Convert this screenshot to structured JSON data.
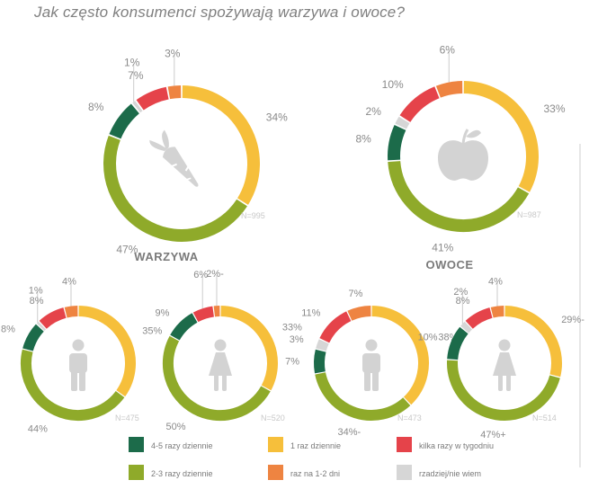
{
  "title": "Jak często konsumenci spożywają warzywa i owoce?",
  "colors": {
    "dark_green": "#1c6b4a",
    "olive": "#8faa2a",
    "yellow": "#f6bf3b",
    "orange": "#ee8441",
    "red": "#e5434a",
    "gray": "#d6d6d6",
    "icon": "#d3d3d3"
  },
  "sections": {
    "warzywa": "WARZYWA",
    "owoce": "OWOCE"
  },
  "legend": [
    {
      "label": "4-5 razy dziennie",
      "color": "#1c6b4a"
    },
    {
      "label": "1 raz dziennie",
      "color": "#f6bf3b"
    },
    {
      "label": "kilka razy w tygodniu",
      "color": "#e5434a"
    },
    {
      "label": "2-3 razy dziennie",
      "color": "#8faa2a"
    },
    {
      "label": "raz na 1-2 dni",
      "color": "#ee8441"
    },
    {
      "label": "rzadziej/nie wiem",
      "color": "#d6d6d6"
    }
  ],
  "chart_data": [
    {
      "type": "pie",
      "id": "veg_total",
      "icon": "carrot-icon",
      "n_label": "N=995",
      "slices": [
        {
          "category": "1 raz dziennie",
          "value": 34,
          "label": "34%"
        },
        {
          "category": "2-3 razy dziennie",
          "value": 47,
          "label": "47%"
        },
        {
          "category": "4-5 razy dziennie",
          "value": 8,
          "label": "8%"
        },
        {
          "category": "rzadziej/nie wiem",
          "value": 1,
          "label": "1%"
        },
        {
          "category": "kilka razy w tygodniu",
          "value": 7,
          "label": "7%"
        },
        {
          "category": "raz na 1-2 dni",
          "value": 3,
          "label": "3%"
        }
      ]
    },
    {
      "type": "pie",
      "id": "fruit_total",
      "icon": "apple-icon",
      "n_label": "N=987",
      "slices": [
        {
          "category": "1 raz dziennie",
          "value": 33,
          "label": "33%"
        },
        {
          "category": "2-3 razy dziennie",
          "value": 41,
          "label": "41%"
        },
        {
          "category": "4-5 razy dziennie",
          "value": 8,
          "label": "8%"
        },
        {
          "category": "rzadziej/nie wiem",
          "value": 2,
          "label": "2%"
        },
        {
          "category": "kilka razy w tygodniu",
          "value": 10,
          "label": "10%"
        },
        {
          "category": "raz na 1-2 dni",
          "value": 6,
          "label": "6%"
        }
      ]
    },
    {
      "type": "pie",
      "id": "veg_male",
      "icon": "male-icon",
      "n_label": "N=475",
      "slices": [
        {
          "category": "1 raz dziennie",
          "value": 35,
          "label": "35%"
        },
        {
          "category": "2-3 razy dziennie",
          "value": 44,
          "label": "44%"
        },
        {
          "category": "4-5 razy dziennie",
          "value": 8,
          "label": "8%"
        },
        {
          "category": "rzadziej/nie wiem",
          "value": 1,
          "label": "1%"
        },
        {
          "category": "kilka razy w tygodniu",
          "value": 8,
          "label": "8%"
        },
        {
          "category": "raz na 1-2 dni",
          "value": 4,
          "label": "4%"
        }
      ]
    },
    {
      "type": "pie",
      "id": "veg_female",
      "icon": "female-icon",
      "n_label": "N=520",
      "slices": [
        {
          "category": "1 raz dziennie",
          "value": 33,
          "label": "33%"
        },
        {
          "category": "2-3 razy dziennie",
          "value": 50,
          "label": "50%"
        },
        {
          "category": "4-5 razy dziennie",
          "value": 9,
          "label": "9%"
        },
        {
          "category": "rzadziej/nie wiem",
          "value": 0,
          "label": ""
        },
        {
          "category": "kilka razy w tygodniu",
          "value": 6,
          "label": "6%"
        },
        {
          "category": "raz na 1-2 dni",
          "value": 2,
          "label": "2%-"
        }
      ]
    },
    {
      "type": "pie",
      "id": "fruit_male",
      "icon": "male-icon",
      "n_label": "N=473",
      "slices": [
        {
          "category": "1 raz dziennie",
          "value": 38,
          "label": "38%"
        },
        {
          "category": "2-3 razy dziennie",
          "value": 34,
          "label": "34%-"
        },
        {
          "category": "4-5 razy dziennie",
          "value": 7,
          "label": "7%"
        },
        {
          "category": "rzadziej/nie wiem",
          "value": 3,
          "label": "3%"
        },
        {
          "category": "kilka razy w tygodniu",
          "value": 11,
          "label": "11%"
        },
        {
          "category": "raz na 1-2 dni",
          "value": 7,
          "label": "7%"
        }
      ]
    },
    {
      "type": "pie",
      "id": "fruit_female",
      "icon": "female-icon",
      "n_label": "N=514",
      "slices": [
        {
          "category": "1 raz dziennie",
          "value": 29,
          "label": "29%-"
        },
        {
          "category": "2-3 razy dziennie",
          "value": 47,
          "label": "47%+"
        },
        {
          "category": "4-5 razy dziennie",
          "value": 10,
          "label": "10%"
        },
        {
          "category": "rzadziej/nie wiem",
          "value": 2,
          "label": "2%"
        },
        {
          "category": "kilka razy w tygodniu",
          "value": 8,
          "label": "8%"
        },
        {
          "category": "raz na 1-2 dni",
          "value": 4,
          "label": "4%"
        }
      ]
    }
  ]
}
